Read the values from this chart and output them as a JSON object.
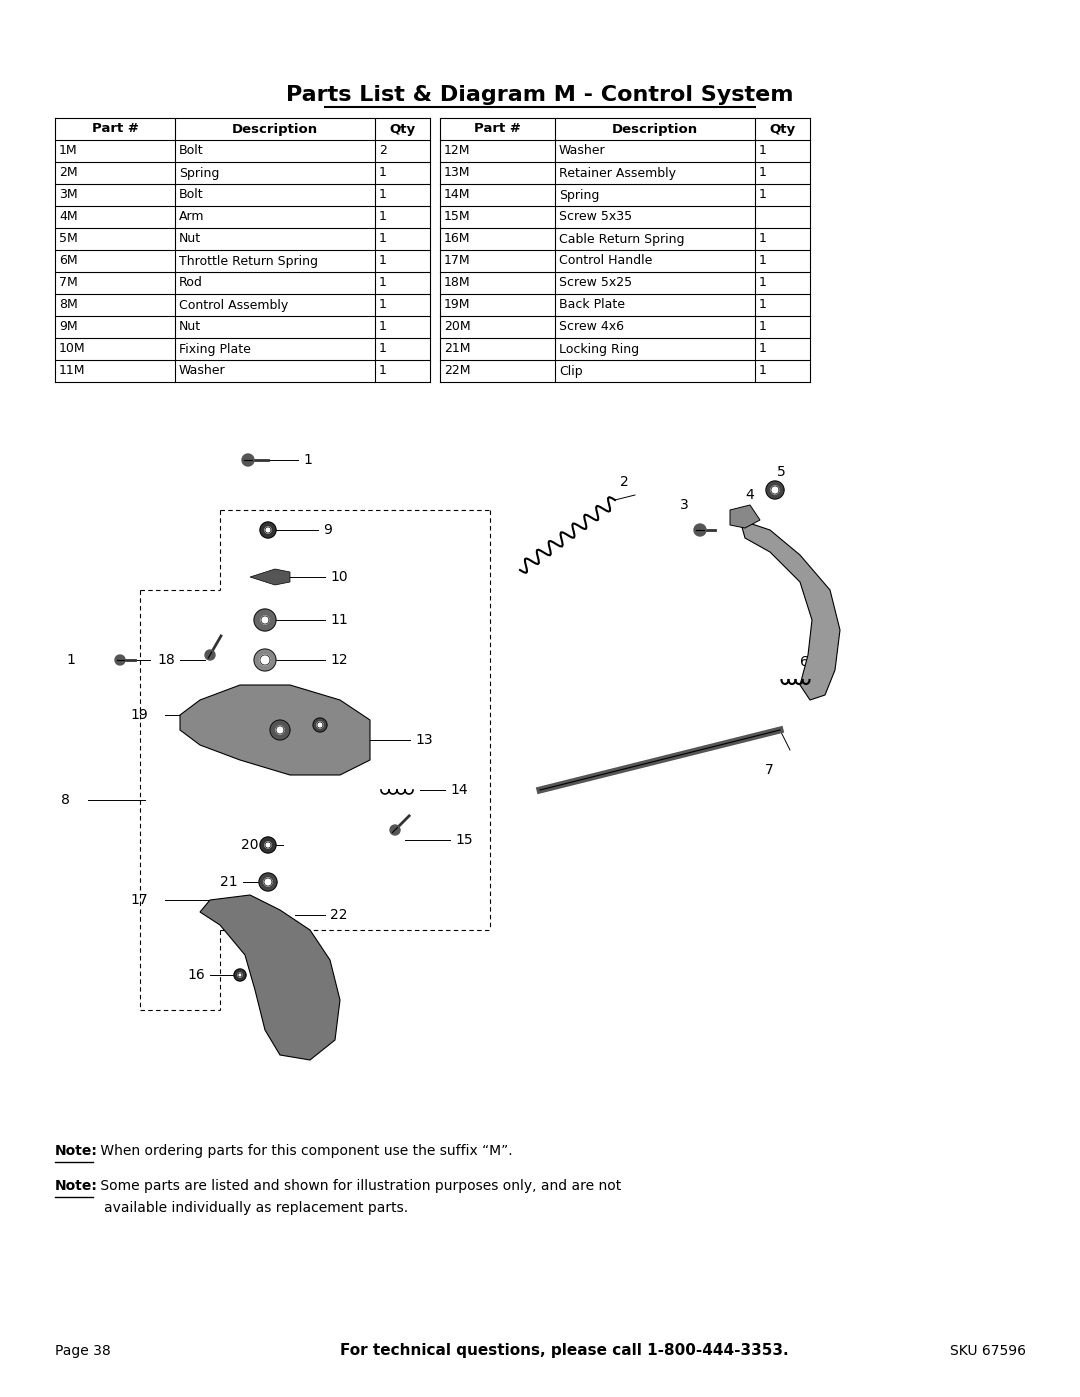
{
  "title": "Parts List & Diagram M - Control System",
  "table_left": [
    {
      "part": "1M",
      "desc": "Bolt",
      "qty": "2"
    },
    {
      "part": "2M",
      "desc": "Spring",
      "qty": "1"
    },
    {
      "part": "3M",
      "desc": "Bolt",
      "qty": "1"
    },
    {
      "part": "4M",
      "desc": "Arm",
      "qty": "1"
    },
    {
      "part": "5M",
      "desc": "Nut",
      "qty": "1"
    },
    {
      "part": "6M",
      "desc": "Throttle Return Spring",
      "qty": "1"
    },
    {
      "part": "7M",
      "desc": "Rod",
      "qty": "1"
    },
    {
      "part": "8M",
      "desc": "Control Assembly",
      "qty": "1"
    },
    {
      "part": "9M",
      "desc": "Nut",
      "qty": "1"
    },
    {
      "part": "10M",
      "desc": "Fixing Plate",
      "qty": "1"
    },
    {
      "part": "11M",
      "desc": "Washer",
      "qty": "1"
    }
  ],
  "table_right": [
    {
      "part": "12M",
      "desc": "Washer",
      "qty": "1"
    },
    {
      "part": "13M",
      "desc": "Retainer Assembly",
      "qty": "1"
    },
    {
      "part": "14M",
      "desc": "Spring",
      "qty": "1"
    },
    {
      "part": "15M",
      "desc": "Screw 5x35",
      "qty": ""
    },
    {
      "part": "16M",
      "desc": "Cable Return Spring",
      "qty": "1"
    },
    {
      "part": "17M",
      "desc": "Control Handle",
      "qty": "1"
    },
    {
      "part": "18M",
      "desc": "Screw 5x25",
      "qty": "1"
    },
    {
      "part": "19M",
      "desc": "Back Plate",
      "qty": "1"
    },
    {
      "part": "20M",
      "desc": "Screw 4x6",
      "qty": "1"
    },
    {
      "part": "21M",
      "desc": "Locking Ring",
      "qty": "1"
    },
    {
      "part": "22M",
      "desc": "Clip",
      "qty": "1"
    }
  ],
  "note1": "When ordering parts for this component use the suffix “M”.",
  "note2": "Some parts are listed and shown for illustration purposes only, and are not\n        available individually as replacement parts.",
  "footer_page": "Page 38",
  "footer_center": "For technical questions, please call 1-800-444-3353.",
  "footer_sku": "SKU 67596",
  "bg_color": "#ffffff",
  "text_color": "#000000",
  "header_col_left": [
    "Part #",
    "Description",
    "Qty"
  ],
  "header_col_right": [
    "Part #",
    "Description",
    "Qty"
  ]
}
